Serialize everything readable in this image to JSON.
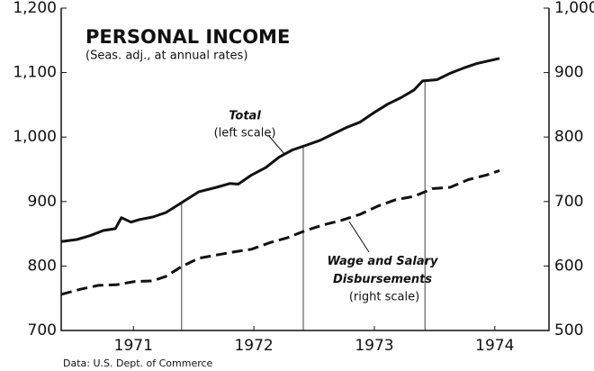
{
  "chart_data": {
    "type": "line",
    "title": "PERSONAL INCOME",
    "subtitle": "(Seas. adj., at annual rates)",
    "source": "Data: U.S. Dept. of Commerce",
    "xlim": [
      1970.4,
      1974.45
    ],
    "xticks": [
      1971,
      1972,
      1973,
      1974
    ],
    "ylim": [
      700,
      1200
    ],
    "yticks": [
      700,
      800,
      900,
      {
        "value": 1000,
        "label": "1,000"
      },
      {
        "value": 1100,
        "label": "1,100"
      },
      {
        "value": 1200,
        "label": "1,200"
      }
    ],
    "y2lim": [
      500,
      1000
    ],
    "y2ticks": [
      500,
      600,
      700,
      800,
      900,
      {
        "value": 1000,
        "label": "1,000"
      }
    ],
    "vlines": [
      1971.4,
      1972.41,
      1973.42
    ],
    "series": [
      {
        "name": "Total",
        "note": "(left scale)",
        "color": "#111",
        "linestyle": "solid",
        "x": [
          1970.4,
          1970.53,
          1970.64,
          1970.75,
          1970.85,
          1970.9,
          1970.98,
          1971.05,
          1971.16,
          1971.27,
          1971.39,
          1971.54,
          1971.69,
          1971.8,
          1971.87,
          1971.98,
          1972.1,
          1972.21,
          1972.32,
          1972.43,
          1972.55,
          1972.66,
          1972.77,
          1972.88,
          1972.99,
          1973.11,
          1973.22,
          1973.33,
          1973.4,
          1973.52,
          1973.63,
          1973.74,
          1973.85,
          1974.04
        ],
        "values": [
          838,
          841,
          847,
          855,
          858,
          875,
          868,
          872,
          876,
          883,
          897,
          915,
          922,
          928,
          927,
          941,
          953,
          969,
          980,
          987,
          995,
          1005,
          1015,
          1023,
          1037,
          1051,
          1061,
          1073,
          1087,
          1089,
          1099,
          1107,
          1114,
          1122
        ]
      },
      {
        "name": "Wage and Salary Disbursements",
        "note": "(right scale)",
        "color": "#111",
        "linestyle": "dashed",
        "axis": "y2",
        "x": [
          1970.4,
          1970.56,
          1970.71,
          1970.86,
          1971.01,
          1971.16,
          1971.27,
          1971.39,
          1971.54,
          1971.69,
          1971.84,
          1971.98,
          1972.13,
          1972.28,
          1972.43,
          1972.58,
          1972.73,
          1972.88,
          1973.03,
          1973.18,
          1973.33,
          1973.48,
          1973.63,
          1973.78,
          1973.93,
          1974.04
        ],
        "values": [
          556,
          564,
          570,
          571,
          576,
          577,
          584,
          598,
          612,
          617,
          622,
          626,
          636,
          644,
          655,
          664,
          671,
          680,
          693,
          703,
          708,
          720,
          722,
          734,
          741,
          748
        ]
      }
    ]
  }
}
